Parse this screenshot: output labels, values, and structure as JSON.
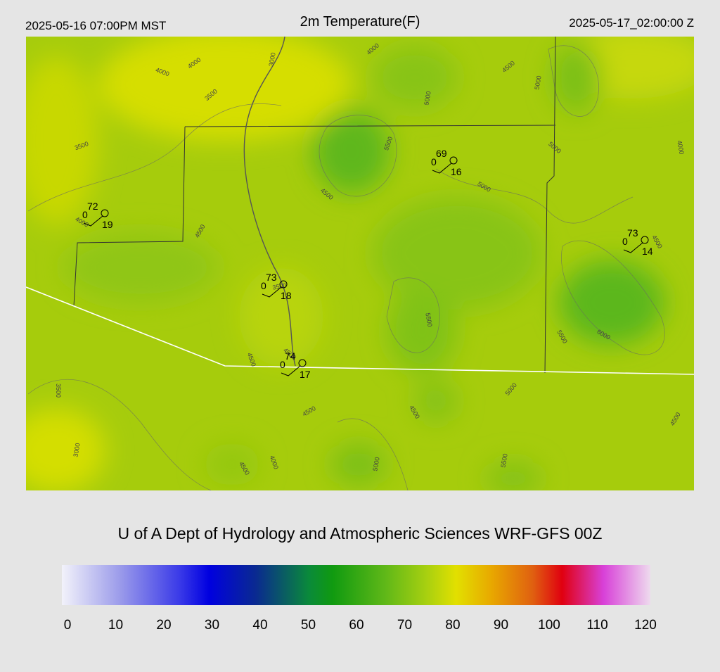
{
  "header": {
    "local_time": "2025-05-16 07:00PM MST",
    "title": "2m Temperature(F)",
    "valid_time": "2025-05-17_02:00:00 Z"
  },
  "stations": [
    {
      "temperature": 72,
      "wind": 0,
      "dewpoint": 19
    },
    {
      "temperature": 69,
      "wind": 0,
      "dewpoint": 16
    },
    {
      "temperature": 73,
      "wind": 0,
      "dewpoint": 14
    },
    {
      "temperature": 73,
      "wind": 0,
      "dewpoint": 18
    },
    {
      "temperature": 74,
      "wind": 0,
      "dewpoint": 17
    }
  ],
  "contour_labels": [
    "4000",
    "4000",
    "3000",
    "4000",
    "4500",
    "5000",
    "3500",
    "5000",
    "3500",
    "5500",
    "5000",
    "4000",
    "4500",
    "5000",
    "4000",
    "4500",
    "4500",
    "3500",
    "5500",
    "6000",
    "5500",
    "4500",
    "4500",
    "3500",
    "5000",
    "4500",
    "4500",
    "4500",
    "3000",
    "4000",
    "4500",
    "5000",
    "5500"
  ],
  "credit": "U of A Dept of Hydrology and Atmospheric Sciences WRF-GFS 00Z",
  "colorbar": {
    "ticks": [
      0,
      10,
      20,
      30,
      40,
      50,
      60,
      70,
      80,
      90,
      100,
      110,
      120
    ]
  }
}
